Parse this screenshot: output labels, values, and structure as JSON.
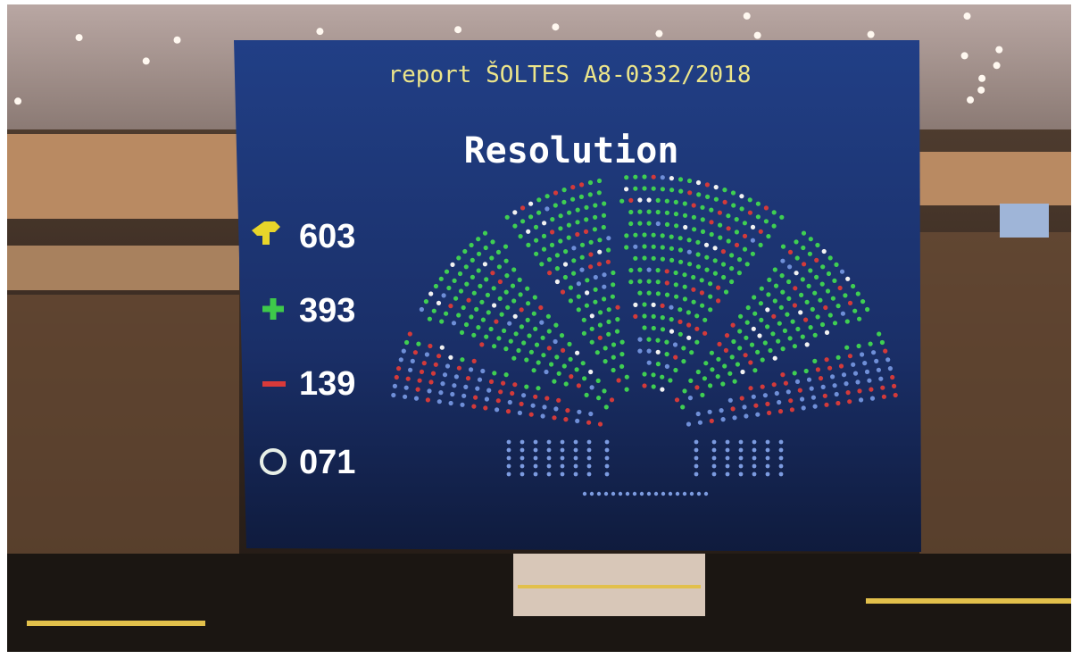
{
  "screen": {
    "title": "report ŠOLTES A8-0332/2018",
    "heading": "Resolution",
    "tally": [
      "603",
      "393",
      "139",
      "071"
    ]
  }
}
